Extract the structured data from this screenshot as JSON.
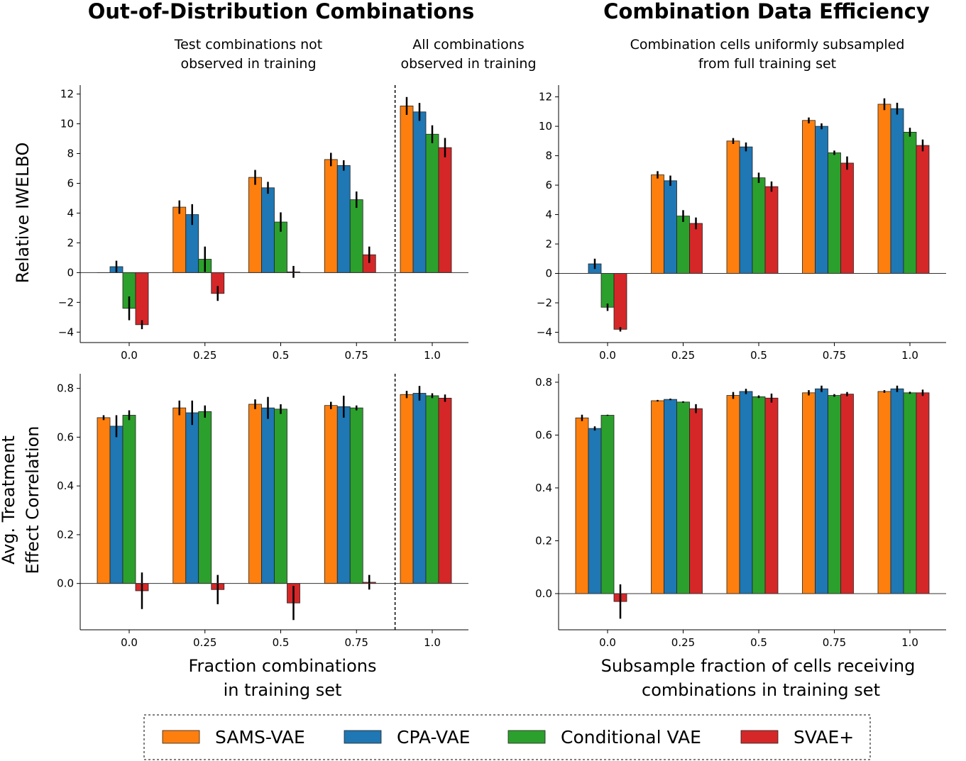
{
  "titles": {
    "left": "Out-of-Distribution Combinations",
    "right": "Combination Data Efficiency"
  },
  "subtitles": {
    "left_a": [
      "Test combinations not",
      "observed in training"
    ],
    "left_b": [
      "All combinations",
      "observed in training"
    ],
    "right": [
      "Combination cells uniformly subsampled",
      "from full training set"
    ]
  },
  "legend": [
    {
      "name": "SAMS-VAE",
      "color": "#ff7f0e"
    },
    {
      "name": "CPA-VAE",
      "color": "#1f77b4"
    },
    {
      "name": "Conditional VAE",
      "color": "#2ca02c"
    },
    {
      "name": "SVAE+",
      "color": "#d62728"
    }
  ],
  "chart_data": [
    {
      "type": "bar",
      "panel": "top-left",
      "ylabel": "Relative IWELBO",
      "xlabel": "",
      "categories": [
        "0.0",
        "0.25",
        "0.5",
        "0.75",
        "1.0"
      ],
      "ylim": [
        -4.7,
        12.6
      ],
      "yticks": [
        -4,
        -2,
        0,
        2,
        4,
        6,
        8,
        10,
        12
      ],
      "separator_after_category": "0.75",
      "series": [
        {
          "name": "SAMS-VAE",
          "values": [
            0,
            4.4,
            6.4,
            7.6,
            11.2
          ],
          "errors": [
            0,
            0.45,
            0.5,
            0.45,
            0.6
          ]
        },
        {
          "name": "CPA-VAE",
          "values": [
            0.4,
            3.9,
            5.7,
            7.2,
            10.8
          ],
          "errors": [
            0.4,
            0.7,
            0.4,
            0.35,
            0.6
          ]
        },
        {
          "name": "Conditional VAE",
          "values": [
            -2.4,
            0.9,
            3.4,
            4.9,
            9.3
          ],
          "errors": [
            0.8,
            0.85,
            0.65,
            0.55,
            0.6
          ]
        },
        {
          "name": "SVAE+",
          "values": [
            -3.5,
            -1.4,
            0.05,
            1.2,
            8.4
          ],
          "errors": [
            0.3,
            0.5,
            0.4,
            0.55,
            0.65
          ]
        }
      ]
    },
    {
      "type": "bar",
      "panel": "top-right",
      "ylabel": "",
      "xlabel": "",
      "categories": [
        "0.0",
        "0.25",
        "0.5",
        "0.75",
        "1.0"
      ],
      "ylim": [
        -4.7,
        12.8
      ],
      "yticks": [
        -4,
        -2,
        0,
        2,
        4,
        6,
        8,
        10,
        12
      ],
      "series": [
        {
          "name": "SAMS-VAE",
          "values": [
            0,
            6.7,
            9.0,
            10.4,
            11.5
          ],
          "errors": [
            0,
            0.25,
            0.2,
            0.2,
            0.4
          ]
        },
        {
          "name": "CPA-VAE",
          "values": [
            0.65,
            6.3,
            8.6,
            10.0,
            11.2
          ],
          "errors": [
            0.35,
            0.35,
            0.3,
            0.2,
            0.4
          ]
        },
        {
          "name": "Conditional VAE",
          "values": [
            -2.3,
            3.9,
            6.5,
            8.2,
            9.6
          ],
          "errors": [
            0.25,
            0.4,
            0.35,
            0.15,
            0.3
          ]
        },
        {
          "name": "SVAE+",
          "values": [
            -3.8,
            3.4,
            5.9,
            7.5,
            8.7
          ],
          "errors": [
            0.15,
            0.4,
            0.35,
            0.45,
            0.4
          ]
        }
      ]
    },
    {
      "type": "bar",
      "panel": "bottom-left",
      "ylabel": [
        "Avg. Treatment",
        "Effect Correlation"
      ],
      "xlabel": [
        "Fraction combinations",
        "in training set"
      ],
      "categories": [
        "0.0",
        "0.25",
        "0.5",
        "0.75",
        "1.0"
      ],
      "ylim": [
        -0.19,
        0.86
      ],
      "yticks": [
        0.0,
        0.2,
        0.4,
        0.6,
        0.8
      ],
      "separator_after_category": "0.75",
      "series": [
        {
          "name": "SAMS-VAE",
          "values": [
            0.68,
            0.72,
            0.735,
            0.73,
            0.775
          ],
          "errors": [
            0.01,
            0.03,
            0.02,
            0.015,
            0.015
          ]
        },
        {
          "name": "CPA-VAE",
          "values": [
            0.645,
            0.7,
            0.72,
            0.725,
            0.78
          ],
          "errors": [
            0.045,
            0.05,
            0.045,
            0.045,
            0.03
          ]
        },
        {
          "name": "Conditional VAE",
          "values": [
            0.69,
            0.705,
            0.715,
            0.72,
            0.77
          ],
          "errors": [
            0.02,
            0.025,
            0.02,
            0.01,
            0.01
          ]
        },
        {
          "name": "SVAE+",
          "values": [
            -0.03,
            -0.025,
            -0.08,
            0.005,
            0.76
          ],
          "errors": [
            0.075,
            0.06,
            0.07,
            0.03,
            0.015
          ]
        }
      ]
    },
    {
      "type": "bar",
      "panel": "bottom-right",
      "ylabel": "",
      "xlabel": [
        "Subsample fraction of cells receiving",
        "combinations in training set"
      ],
      "categories": [
        "0.0",
        "0.25",
        "0.5",
        "0.75",
        "1.0"
      ],
      "ylim": [
        -0.137,
        0.832
      ],
      "yticks": [
        0.0,
        0.2,
        0.4,
        0.6,
        0.8
      ],
      "series": [
        {
          "name": "SAMS-VAE",
          "values": [
            0.665,
            0.73,
            0.75,
            0.76,
            0.765
          ],
          "errors": [
            0.012,
            0.003,
            0.013,
            0.01,
            0.005
          ]
        },
        {
          "name": "CPA-VAE",
          "values": [
            0.625,
            0.735,
            0.765,
            0.775,
            0.775
          ],
          "errors": [
            0.008,
            0.003,
            0.01,
            0.012,
            0.012
          ]
        },
        {
          "name": "Conditional VAE",
          "values": [
            0.675,
            0.725,
            0.745,
            0.75,
            0.76
          ],
          "errors": [
            0.002,
            0.003,
            0.005,
            0.005,
            0.004
          ]
        },
        {
          "name": "SVAE+",
          "values": [
            -0.03,
            0.7,
            0.74,
            0.755,
            0.76
          ],
          "errors": [
            0.065,
            0.017,
            0.017,
            0.008,
            0.012
          ]
        }
      ]
    }
  ]
}
